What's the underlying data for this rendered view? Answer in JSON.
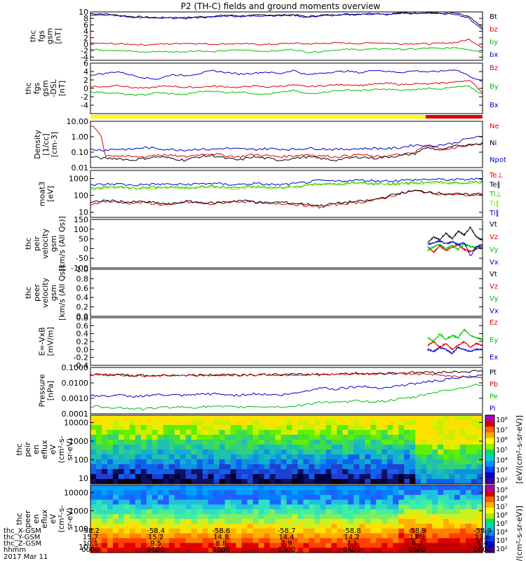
{
  "chart_data": [
    {
      "type": "line",
      "title": "P2 (TH-C) fields and ground moments overview",
      "ylabel": [
        "thc",
        "fgs",
        "gsm",
        "[nT]"
      ],
      "ylim": [
        -5,
        10
      ],
      "yticks": [
        10,
        8,
        6,
        4,
        2,
        0,
        -2,
        -4
      ],
      "series": [
        {
          "name": "Bt",
          "color": "#000000",
          "values": [
            9.5,
            9.4,
            9.0,
            8.6,
            8.4,
            8.2,
            8.3,
            8.2,
            8.5,
            8.6,
            9.0,
            8.8,
            8.9,
            9.1,
            9.0,
            9.2,
            8.5,
            9.0,
            9.1,
            9.3,
            9.4,
            9.6,
            9.3,
            9.8,
            9.6,
            9.9,
            9.5,
            9.6,
            8.5,
            5.0
          ]
        },
        {
          "name": "bz",
          "color": "#e00000",
          "values": [
            0.3,
            0.2,
            0.1,
            0.0,
            -0.2,
            0.0,
            0.1,
            0.3,
            0.2,
            0.0,
            0.1,
            0.2,
            0.0,
            -0.1,
            0.1,
            0.3,
            0.1,
            0.2,
            0.4,
            0.3,
            0.2,
            0.5,
            0.3,
            0.1,
            0.2,
            0.1,
            0.3,
            0.5,
            1.5,
            -1.0
          ]
        },
        {
          "name": "by",
          "color": "#00c000",
          "values": [
            -1.6,
            -1.8,
            -1.9,
            -2.2,
            -2.5,
            -2.2,
            -2.4,
            -2.3,
            -2.0,
            -2.4,
            -2.0,
            -1.8,
            -2.0,
            -2.2,
            -2.0,
            -1.6,
            -2.5,
            -2.3,
            -1.8,
            -1.6,
            -1.7,
            -1.5,
            -1.4,
            -1.6,
            -1.5,
            -1.2,
            -1.4,
            -1.0,
            -1.6,
            -2.5
          ]
        },
        {
          "name": "bx",
          "color": "#0000d0",
          "values": [
            9.2,
            9.1,
            8.8,
            8.4,
            8.2,
            8.0,
            8.1,
            8.0,
            8.3,
            8.4,
            8.8,
            8.6,
            8.7,
            8.9,
            8.8,
            9.0,
            8.3,
            8.8,
            8.9,
            9.1,
            9.2,
            9.4,
            9.1,
            9.6,
            9.4,
            9.7,
            9.3,
            9.4,
            8.0,
            4.5
          ]
        }
      ]
    },
    {
      "type": "line",
      "ylabel": [
        "thc",
        "fgs",
        "gsm",
        "-DSL",
        "[nT]"
      ],
      "ylim": [
        -6,
        6
      ],
      "yticks": [
        6,
        4,
        2,
        0,
        -2,
        -4
      ],
      "series": [
        {
          "name": "Bz",
          "color": "#e00000",
          "values": [
            0.5,
            0.3,
            0.8,
            0.2,
            0.0,
            0.4,
            0.6,
            0.2,
            0.3,
            0.5,
            0.4,
            0.2,
            0.6,
            0.3,
            0.5,
            0.8,
            0.4,
            0.6,
            0.8,
            0.9,
            0.7,
            1.0,
            1.2,
            0.9,
            1.1,
            1.0,
            1.3,
            1.5,
            2.0,
            -1.0
          ]
        },
        {
          "name": "By",
          "color": "#00c000",
          "values": [
            -0.8,
            -1.0,
            -1.2,
            -1.6,
            -1.5,
            -1.0,
            -1.3,
            -1.5,
            -0.8,
            -0.6,
            -1.0,
            -0.8,
            -1.2,
            -1.4,
            -1.0,
            -0.5,
            -1.3,
            -1.0,
            -0.6,
            -0.4,
            -0.5,
            -0.3,
            -0.2,
            -0.5,
            -0.3,
            0.0,
            -0.1,
            0.3,
            0.5,
            -1.5
          ]
        },
        {
          "name": "Bx",
          "color": "#0000d0",
          "values": [
            3.2,
            3.5,
            4.0,
            3.2,
            2.5,
            2.2,
            3.3,
            3.0,
            3.5,
            4.2,
            3.8,
            3.4,
            3.6,
            3.9,
            3.5,
            4.3,
            3.2,
            3.6,
            3.9,
            4.1,
            3.7,
            4.4,
            4.0,
            3.8,
            4.2,
            3.9,
            4.1,
            4.5,
            3.0,
            1.5
          ]
        }
      ],
      "mode_bar": [
        {
          "from": 0,
          "to": 0.855,
          "color": "#ffff00"
        },
        {
          "from": 0.855,
          "to": 1,
          "color": "#e00000"
        }
      ]
    },
    {
      "type": "line",
      "ylabel": [
        "Density",
        "[1/cc]",
        "[cm-3]"
      ],
      "scale": "log",
      "ylim": [
        0.01,
        10
      ],
      "ytick_labels": [
        "10.00",
        "1.00",
        "0.10",
        "0.01"
      ],
      "series": [
        {
          "name": "Ne",
          "color": "#e00000",
          "values": [
            5.0,
            0.06,
            0.06,
            0.05,
            0.05,
            0.07,
            0.06,
            0.05,
            0.07,
            0.08,
            0.06,
            0.05,
            0.07,
            0.06,
            0.05,
            0.06,
            0.07,
            0.06,
            0.05,
            0.06,
            0.07,
            0.05,
            0.06,
            0.07,
            0.09,
            0.3,
            0.15,
            0.2,
            0.3,
            0.35
          ]
        },
        {
          "name": "Ni",
          "color": "#000000",
          "values": [
            0.05,
            0.04,
            0.04,
            0.03,
            0.04,
            0.05,
            0.04,
            0.03,
            0.05,
            0.06,
            0.04,
            0.03,
            0.05,
            0.04,
            0.03,
            0.04,
            0.05,
            0.04,
            0.03,
            0.04,
            0.05,
            0.04,
            0.05,
            0.06,
            0.08,
            0.2,
            0.12,
            0.25,
            0.3,
            0.4
          ]
        },
        {
          "name": "Npot",
          "color": "#0000d0",
          "values": [
            0.15,
            0.14,
            0.16,
            0.15,
            0.2,
            0.17,
            0.15,
            0.14,
            0.16,
            0.15,
            0.18,
            0.16,
            0.15,
            0.17,
            0.16,
            0.15,
            0.18,
            0.17,
            0.15,
            0.16,
            0.17,
            0.18,
            0.17,
            0.2,
            0.3,
            0.25,
            0.3,
            0.4,
            0.8,
            1.0
          ]
        }
      ]
    },
    {
      "type": "line",
      "ylabel": [
        "moat3",
        "[eV]"
      ],
      "scale": "log",
      "ylim": [
        5,
        3000
      ],
      "ytick_labels": [
        "1000",
        "100",
        "10"
      ],
      "series": [
        {
          "name": "Te⊥",
          "color": "#e00000",
          "values": [
            30,
            45,
            40,
            35,
            38,
            30,
            25,
            40,
            35,
            30,
            38,
            45,
            40,
            30,
            35,
            30,
            25,
            20,
            28,
            35,
            40,
            50,
            80,
            130,
            180,
            150,
            120,
            110,
            100,
            120
          ]
        },
        {
          "name": "Te∥",
          "color": "#000000",
          "values": [
            35,
            50,
            45,
            40,
            42,
            35,
            30,
            45,
            40,
            35,
            42,
            50,
            45,
            35,
            40,
            35,
            30,
            25,
            32,
            40,
            45,
            55,
            90,
            140,
            190,
            160,
            130,
            120,
            110,
            130
          ]
        },
        {
          "name": "Ti⊥",
          "color": "#00c000",
          "values": [
            280,
            300,
            320,
            260,
            290,
            310,
            300,
            290,
            320,
            350,
            300,
            290,
            330,
            300,
            280,
            320,
            400,
            500,
            450,
            500,
            550,
            500,
            480,
            520,
            550,
            600,
            580,
            550,
            600,
            650
          ]
        },
        {
          "name": "Ti∥",
          "color": "#80e000",
          "values": [
            250,
            280,
            300,
            240,
            270,
            290,
            280,
            270,
            300,
            330,
            280,
            270,
            310,
            280,
            260,
            300,
            380,
            480,
            430,
            480,
            520,
            480,
            460,
            500,
            520,
            580,
            560,
            530,
            580,
            620
          ]
        },
        {
          "name": "Ti∥",
          "color": "#0000d0",
          "values": [
            420,
            450,
            480,
            400,
            440,
            460,
            450,
            440,
            480,
            520,
            450,
            440,
            500,
            450,
            420,
            480,
            600,
            750,
            680,
            750,
            800,
            750,
            720,
            780,
            820,
            900,
            870,
            830,
            900,
            950
          ]
        }
      ]
    },
    {
      "type": "line",
      "ylabel": [
        "thc",
        "peir",
        "velocity",
        "gsm",
        "[km/s (All Qs)]"
      ],
      "ylim": [
        -100,
        150
      ],
      "yticks": [
        150,
        100,
        50,
        0,
        -50,
        -100
      ],
      "x_data_start": 0.86,
      "series": [
        {
          "name": "Vt",
          "color": "#000000",
          "values": [
            30,
            60,
            45,
            80,
            50,
            90,
            70,
            110,
            60,
            40
          ]
        },
        {
          "name": "Vz",
          "color": "#e00000",
          "values": [
            10,
            -20,
            15,
            -10,
            5,
            20,
            -5,
            -15,
            0,
            10
          ]
        },
        {
          "name": "Vy",
          "color": "#00c000",
          "values": [
            -10,
            10,
            20,
            0,
            15,
            -5,
            25,
            10,
            5,
            0
          ]
        },
        {
          "name": "Vx",
          "color": "#0000d0",
          "values": [
            20,
            30,
            40,
            25,
            35,
            20,
            30,
            -40,
            10,
            20
          ]
        }
      ]
    },
    {
      "type": "line",
      "ylabel": [
        "thc",
        "peer",
        "velocity",
        "gsm",
        "[km/s (All Qs)]"
      ],
      "ylim": [
        0,
        1
      ],
      "ytick_labels": [
        "1.0",
        "0.8",
        "0.6",
        "0.4",
        "0.2",
        "0.0"
      ],
      "series": [
        {
          "name": "Vt",
          "color": "#000000",
          "values": []
        },
        {
          "name": "Vz",
          "color": "#e00000",
          "values": []
        },
        {
          "name": "Vy",
          "color": "#00c000",
          "values": []
        },
        {
          "name": "Vx",
          "color": "#0000d0",
          "values": []
        }
      ]
    },
    {
      "type": "line",
      "ylabel": [
        "E=-VxB",
        "[mV/m]"
      ],
      "ylim": [
        -0.4,
        0.8
      ],
      "ytick_labels": [
        "0.8",
        "0.6",
        "0.4",
        "0.2",
        "0.0",
        "-0.2",
        "-0.4"
      ],
      "x_data_start": 0.86,
      "series": [
        {
          "name": "Ez",
          "color": "#e00000",
          "values": [
            0.1,
            0.2,
            0.05,
            0.15,
            0.0,
            0.1,
            0.2,
            0.05,
            0.15,
            0.1
          ]
        },
        {
          "name": "Ey",
          "color": "#00c000",
          "values": [
            0.3,
            0.2,
            0.4,
            0.25,
            0.35,
            0.3,
            0.5,
            0.35,
            0.3,
            0.25
          ]
        },
        {
          "name": "Ex",
          "color": "#0000d0",
          "values": [
            0.0,
            -0.05,
            0.05,
            0.0,
            -0.1,
            0.05,
            0.0,
            -0.05,
            0.0,
            0.0
          ]
        }
      ]
    },
    {
      "type": "line",
      "ylabel": [
        "Pressure",
        "[nPa]"
      ],
      "scale": "log",
      "ylim": [
        0.0001,
        0.1
      ],
      "ytick_labels": [
        "0.1000",
        "0.0100",
        "0.0010",
        "0.0001"
      ],
      "series": [
        {
          "name": "Pt",
          "color": "#000000",
          "values": [
            0.035,
            0.034,
            0.033,
            0.031,
            0.03,
            0.031,
            0.032,
            0.031,
            0.032,
            0.033,
            0.034,
            0.033,
            0.034,
            0.035,
            0.034,
            0.035,
            0.036,
            0.037,
            0.038,
            0.04,
            0.041,
            0.042,
            0.043,
            0.045,
            0.047,
            0.05,
            0.05,
            0.052,
            0.055,
            0.06
          ]
        },
        {
          "name": "Pb",
          "color": "#e00000",
          "values": [
            0.034,
            0.033,
            0.032,
            0.03,
            0.029,
            0.03,
            0.031,
            0.03,
            0.031,
            0.032,
            0.033,
            0.032,
            0.033,
            0.034,
            0.033,
            0.034,
            0.033,
            0.034,
            0.035,
            0.036,
            0.037,
            0.038,
            0.039,
            0.04,
            0.04,
            0.035,
            0.03,
            0.028,
            0.025,
            0.02
          ]
        },
        {
          "name": "Pe",
          "color": "#00c000",
          "values": [
            0.0003,
            0.00028,
            0.00025,
            0.00022,
            0.0002,
            0.00025,
            0.00028,
            0.00026,
            0.00027,
            0.0003,
            0.00028,
            0.00027,
            0.0003,
            0.00029,
            0.00028,
            0.0003,
            0.0004,
            0.0006,
            0.0005,
            0.0006,
            0.0007,
            0.0006,
            0.0007,
            0.0009,
            0.0012,
            0.002,
            0.003,
            0.004,
            0.006,
            0.008
          ]
        },
        {
          "name": "Pi",
          "color": "#0000d0",
          "values": [
            0.0015,
            0.0014,
            0.0016,
            0.0013,
            0.0015,
            0.0017,
            0.0016,
            0.0015,
            0.0018,
            0.002,
            0.0017,
            0.0016,
            0.002,
            0.0018,
            0.0016,
            0.002,
            0.003,
            0.005,
            0.004,
            0.005,
            0.006,
            0.005,
            0.005,
            0.007,
            0.009,
            0.012,
            0.015,
            0.02,
            0.025,
            0.03
          ]
        }
      ]
    },
    {
      "type": "heatmap",
      "ylabel": [
        "thc",
        "peir",
        "en",
        "eflux",
        "eV",
        "(cm²-s-",
        "sr-eV)"
      ],
      "scale": "log",
      "ylim": [
        5,
        25000
      ],
      "ytick_labels": [
        "10000",
        "1000",
        "100",
        "10"
      ],
      "colorbar": {
        "label": "[eV/(cm²-s-sr-eV)]",
        "ticks": [
          "10⁸",
          "10⁷",
          "10⁶",
          "10⁵",
          "10⁴",
          "10³",
          "10²"
        ]
      }
    },
    {
      "type": "heatmap",
      "ylabel": [
        "thc",
        "peer",
        "en",
        "eflux",
        "eV",
        "(cm²-s-",
        "sr-eV)"
      ],
      "scale": "log",
      "ylim": [
        5,
        25000
      ],
      "ytick_labels": [
        "10000",
        "1000",
        "100",
        "10"
      ],
      "colorbar": {
        "label": "[eV/(cm²-s-sr-eV)]",
        "ticks": [
          "10⁹",
          "10⁸",
          "10⁷",
          "10⁶",
          "10⁵",
          "10⁴",
          "10³",
          "10²"
        ]
      }
    }
  ],
  "x_axis": {
    "rows": [
      {
        "label": "thc_X-GSM",
        "values": [
          "-58.2",
          "-58.4",
          "-58.6",
          "-58.7",
          "-58.8",
          "-58.9",
          "-58.9"
        ]
      },
      {
        "label": "thc_Y-GSM",
        "values": [
          "15.7",
          "15.2",
          "14.8",
          "14.4",
          "14.2",
          "13.9",
          "13.6"
        ]
      },
      {
        "label": "thc_Z-GSM",
        "values": [
          "10.1",
          "9.5",
          "8.8",
          "7.9",
          "7.1",
          "6.2",
          "5.4"
        ]
      },
      {
        "label": "hhmm",
        "values": [
          "0000",
          "0100",
          "0200",
          "0300",
          "0400",
          "0500",
          "0600"
        ]
      }
    ],
    "date": "2017 Mar 11"
  },
  "colors": {
    "yellow": "#ffff00",
    "red": "#e00000"
  }
}
